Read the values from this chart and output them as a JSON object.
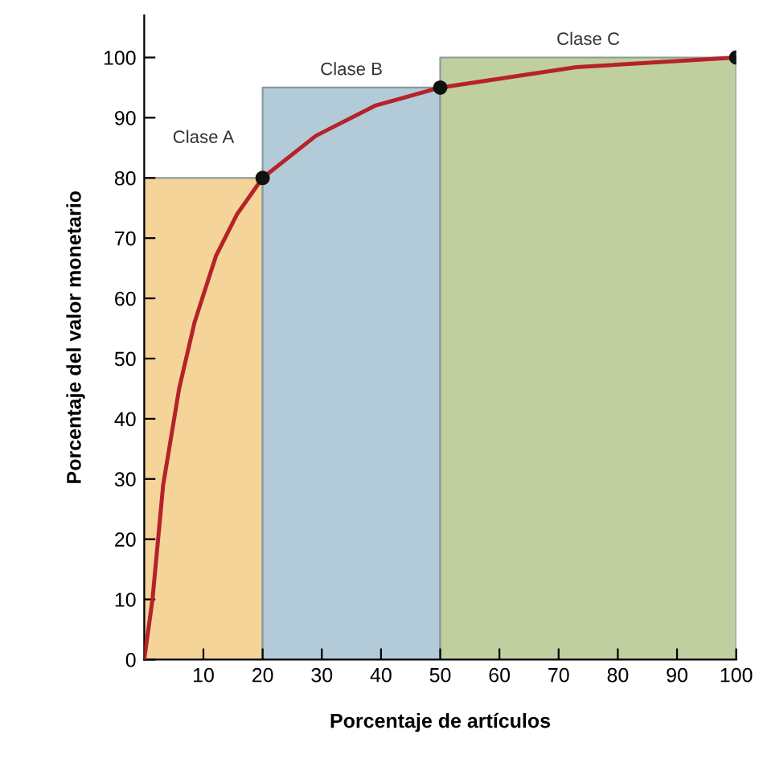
{
  "chart_data": {
    "type": "line",
    "xlabel": "Porcentaje de artículos",
    "ylabel": "Porcentaje del valor monetario",
    "series": [
      {
        "type": "area",
        "color": "#f5d49a",
        "x": [
          0,
          20
        ],
        "values": [
          80,
          80
        ]
      },
      {
        "type": "area",
        "color": "#b3cbd8",
        "x": [
          20,
          50
        ],
        "values": [
          95,
          95
        ]
      },
      {
        "type": "area",
        "color": "#c0cfa0",
        "x": [
          50,
          100
        ],
        "values": [
          100,
          100
        ]
      },
      {
        "color": "#b5232a",
        "x": [
          0,
          1.4,
          3.2,
          5.9,
          8.5,
          12.1,
          15.7,
          20,
          29,
          39,
          50,
          73,
          100
        ],
        "values": [
          0,
          10,
          29,
          45,
          56,
          67,
          74,
          80,
          87,
          92,
          95,
          98.4,
          100
        ]
      },
      {
        "type": "scatter",
        "color": "#111111",
        "x": [
          20,
          50,
          100
        ],
        "values": [
          80,
          95,
          100
        ]
      }
    ],
    "annotations": [
      "Clase A",
      "Clase B",
      "Clase C"
    ],
    "xlim": [
      0,
      100
    ],
    "ylim": [
      0,
      107
    ],
    "xticks": [
      10,
      20,
      30,
      40,
      50,
      60,
      70,
      80,
      90,
      100
    ],
    "yticks": [
      0,
      10,
      20,
      30,
      40,
      50,
      60,
      70,
      80,
      90,
      100
    ],
    "grid": false,
    "legend": false
  }
}
